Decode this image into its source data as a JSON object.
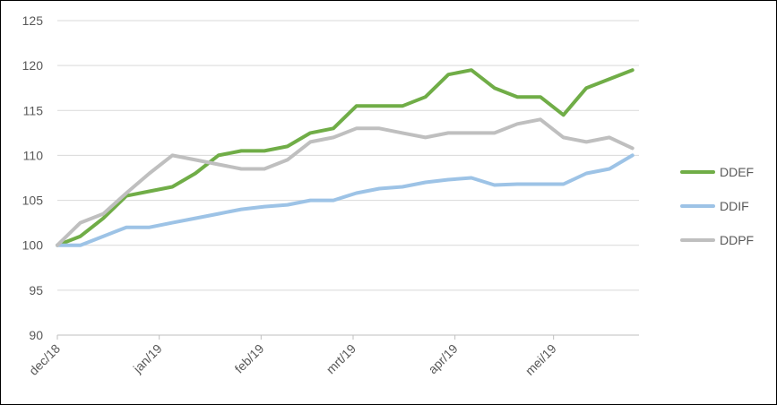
{
  "chart_data": {
    "type": "line",
    "title": "",
    "xlabel": "",
    "ylabel": "",
    "ylim": [
      90,
      125
    ],
    "yticks": [
      90,
      95,
      100,
      105,
      110,
      115,
      120,
      125
    ],
    "xticks": [
      "dec/18",
      "jan/19",
      "feb/19",
      "mrt/19",
      "apr/19",
      "mei/19"
    ],
    "grid": "horizontal",
    "legend_position": "right",
    "x_dates": [
      "2018-12-01",
      "2018-12-08",
      "2018-12-15",
      "2018-12-22",
      "2018-12-29",
      "2019-01-05",
      "2019-01-12",
      "2019-01-19",
      "2019-01-26",
      "2019-02-02",
      "2019-02-09",
      "2019-02-16",
      "2019-02-23",
      "2019-03-02",
      "2019-03-09",
      "2019-03-16",
      "2019-03-23",
      "2019-03-30",
      "2019-04-06",
      "2019-04-13",
      "2019-04-20",
      "2019-04-27",
      "2019-05-04",
      "2019-05-11",
      "2019-05-18",
      "2019-05-25"
    ],
    "series": [
      {
        "name": "DDEF",
        "color": "#70AD47",
        "values": [
          100.0,
          101.0,
          103.0,
          105.5,
          106.0,
          106.5,
          108.0,
          110.0,
          110.5,
          110.5,
          111.0,
          112.5,
          113.0,
          115.5,
          115.5,
          115.5,
          116.5,
          119.0,
          119.5,
          117.5,
          116.5,
          116.5,
          114.5,
          117.5,
          118.5,
          119.5
        ]
      },
      {
        "name": "DDIF",
        "color": "#9DC3E6",
        "values": [
          100.0,
          100.0,
          101.0,
          102.0,
          102.0,
          102.5,
          103.0,
          103.5,
          104.0,
          104.3,
          104.5,
          105.0,
          105.0,
          105.8,
          106.3,
          106.5,
          107.0,
          107.3,
          107.5,
          106.7,
          106.8,
          106.8,
          106.8,
          108.0,
          108.5,
          110.0
        ]
      },
      {
        "name": "DDPF",
        "color": "#BFBFBF",
        "values": [
          100.0,
          102.5,
          103.5,
          105.8,
          108.0,
          110.0,
          109.5,
          109.0,
          108.5,
          108.5,
          109.5,
          111.5,
          112.0,
          113.0,
          113.0,
          112.5,
          112.0,
          112.5,
          112.5,
          112.5,
          113.5,
          114.0,
          112.0,
          111.5,
          112.0,
          110.8
        ]
      }
    ]
  }
}
